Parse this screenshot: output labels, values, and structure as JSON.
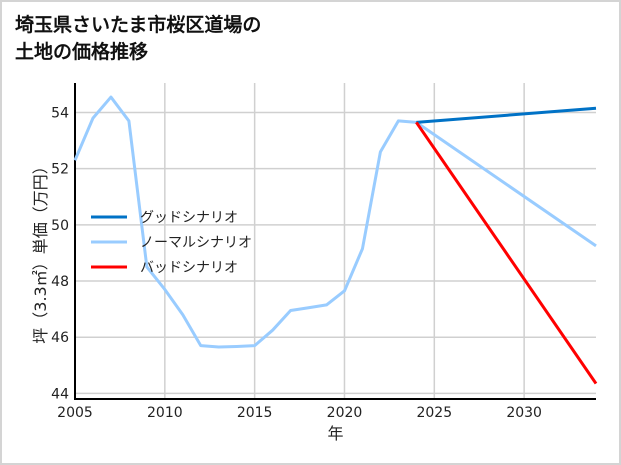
{
  "chart_data": {
    "type": "line",
    "title_line1": "埼玉県さいたま市桜区道場の",
    "title_line2": "土地の価格推移",
    "xlabel": "年",
    "ylabel": "坪（3.3㎡）単価（万円）",
    "xlim": [
      2005,
      2034
    ],
    "ylim": [
      43.8,
      55.05
    ],
    "xticks": [
      2005,
      2010,
      2015,
      2020,
      2025,
      2030
    ],
    "yticks": [
      44,
      46,
      48,
      50,
      52,
      54
    ],
    "grid": true,
    "legend_position": "center-left",
    "series": [
      {
        "name": "グッドシナリオ",
        "color": "#0072c6",
        "x": [
          2024,
          2034
        ],
        "y": [
          53.65,
          54.15
        ]
      },
      {
        "name": "ノーマルシナリオ",
        "color": "#99ccff",
        "x": [
          2005,
          2006,
          2007,
          2008,
          2009,
          2010,
          2011,
          2012,
          2013,
          2014,
          2015,
          2016,
          2017,
          2018,
          2019,
          2020,
          2021,
          2022,
          2023,
          2024,
          2034
        ],
        "y": [
          52.3,
          53.8,
          54.55,
          53.7,
          48.5,
          47.7,
          46.8,
          45.7,
          45.65,
          45.67,
          45.7,
          46.25,
          46.95,
          47.05,
          47.15,
          47.65,
          49.15,
          52.6,
          53.7,
          53.65,
          49.25
        ]
      },
      {
        "name": "バッドシナリオ",
        "color": "#ff0000",
        "x": [
          2024,
          2034
        ],
        "y": [
          53.65,
          44.35
        ]
      }
    ]
  }
}
